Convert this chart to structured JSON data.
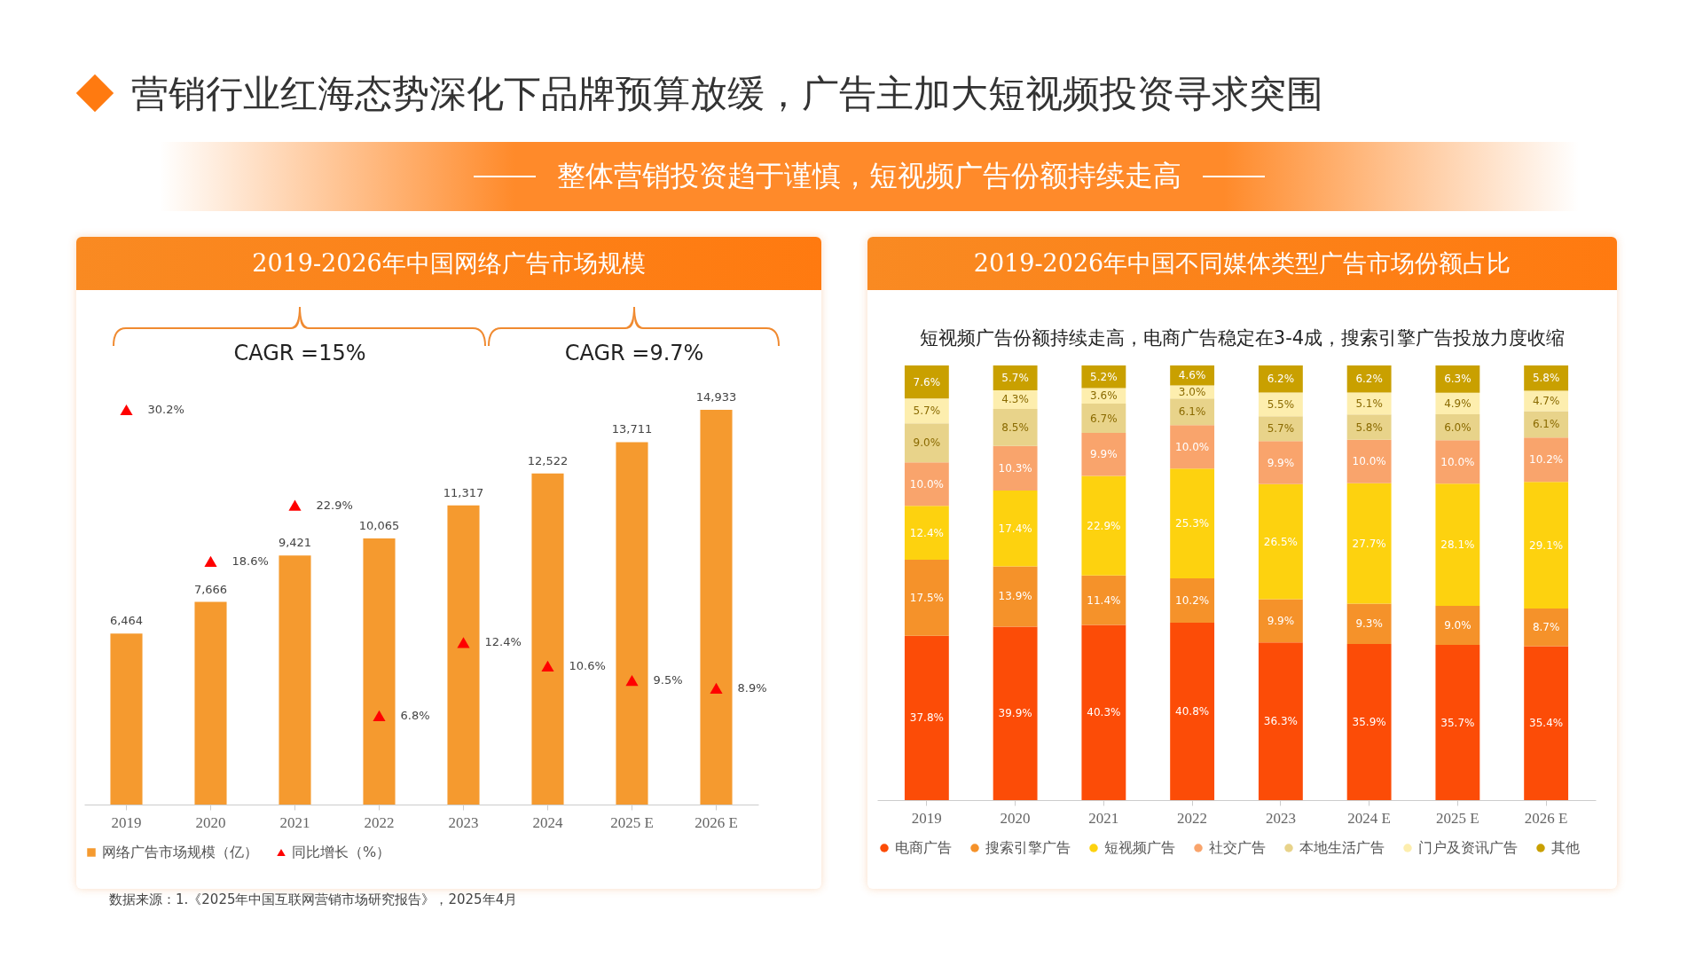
{
  "chart_data": [
    {
      "type": "bar",
      "title": "2019-2026年中国网络广告市场规模",
      "categories": [
        "2019",
        "2020",
        "2021",
        "2022",
        "2023",
        "2024",
        "2025 E",
        "2026 E"
      ],
      "series": [
        {
          "name": "网络广告市场规模（亿）",
          "color": "#f59a2f",
          "values": [
            6464,
            7666,
            9421,
            10065,
            11317,
            12522,
            13711,
            14933
          ],
          "value_labels": [
            "6,464",
            "7,666",
            "9,421",
            "10,065",
            "11,317",
            "12,522",
            "13,711",
            "14,933"
          ]
        },
        {
          "name": "同比增长（%）",
          "type": "scatter",
          "axis": "y2",
          "marker": "triangle",
          "color": "#ff0000",
          "values": [
            30.2,
            18.6,
            22.9,
            6.8,
            12.4,
            10.6,
            9.5,
            8.9
          ],
          "value_labels": [
            "30.2%",
            "18.6%",
            "22.9%",
            "6.8%",
            "12.4%",
            "10.6%",
            "9.5%",
            "8.9%"
          ]
        }
      ],
      "legend": "bottom",
      "annotations": [
        "营销行业红海态势深化下品牌预算放缓，广告主加大短视频投资寻求突围",
        "整体营销投资趋于谨慎，短视频广告份额持续走高",
        "CAGR =15%",
        "CAGR =9.7%",
        "数据来源：1.《2025年中国互联网营销市场研究报告》，2025年4月"
      ]
    },
    {
      "type": "bar",
      "stacked": true,
      "title": "2019-2026年中国不同媒体类型广告市场份额占比",
      "subtitle": "短视频广告份额持续走高，电商广告稳定在3-4成，搜索引擎广告投放力度收缩",
      "categories": [
        "2019",
        "2020",
        "2021",
        "2022",
        "2023",
        "2024 E",
        "2025 E",
        "2026 E"
      ],
      "series": [
        {
          "name": "电商广告",
          "color": "#fc4c07",
          "values": [
            37.8,
            39.9,
            40.3,
            40.8,
            36.3,
            35.9,
            35.7,
            35.4
          ],
          "value_labels": [
            "37.8%",
            "39.9%",
            "40.3%",
            "40.8%",
            "36.3%",
            "35.9%",
            "35.7%",
            "35.4%"
          ]
        },
        {
          "name": "搜索引擎广告",
          "color": "#f5922a",
          "values": [
            17.5,
            13.9,
            11.4,
            10.2,
            9.9,
            9.3,
            9.0,
            8.7
          ],
          "value_labels": [
            "17.5%",
            "13.9%",
            "11.4%",
            "10.2%",
            "9.9%",
            "9.3%",
            "9.0%",
            "8.7%"
          ]
        },
        {
          "name": "短视频广告",
          "color": "#fdd20f",
          "values": [
            12.4,
            17.4,
            22.9,
            25.3,
            26.5,
            27.7,
            28.1,
            29.1
          ],
          "value_labels": [
            "12.4%",
            "17.4%",
            "22.9%",
            "25.3%",
            "26.5%",
            "27.7%",
            "28.1%",
            "29.1%"
          ]
        },
        {
          "name": "社交广告",
          "color": "#f9a46c",
          "values": [
            10.0,
            10.3,
            9.9,
            10.0,
            9.9,
            10.0,
            10.0,
            10.2
          ],
          "value_labels": [
            "10.0%",
            "10.3%",
            "9.9%",
            "10.0%",
            "9.9%",
            "10.0%",
            "10.0%",
            "10.2%"
          ]
        },
        {
          "name": "本地生活广告",
          "color": "#e8d38a",
          "values": [
            9.0,
            8.5,
            6.7,
            6.1,
            5.7,
            5.8,
            6.0,
            6.1
          ],
          "value_labels": [
            "9.0%",
            "8.5%",
            "6.7%",
            "6.1%",
            "5.7%",
            "5.8%",
            "6.0%",
            "6.1%"
          ]
        },
        {
          "name": "门户及资讯广告",
          "color": "#fdeeae",
          "values": [
            5.7,
            4.3,
            3.6,
            3.0,
            5.5,
            5.1,
            4.9,
            4.7
          ],
          "value_labels": [
            "5.7%",
            "4.3%",
            "3.6%",
            "3.0%",
            "5.5%",
            "5.1%",
            "4.9%",
            "4.7%"
          ]
        },
        {
          "name": "其他",
          "color": "#c9a000",
          "values": [
            7.6,
            5.7,
            5.2,
            4.6,
            6.2,
            6.2,
            6.3,
            5.8
          ],
          "value_labels": [
            "7.6%",
            "5.7%",
            "5.2%",
            "4.6%",
            "6.2%",
            "6.2%",
            "6.3%",
            "5.8%"
          ]
        }
      ],
      "legend": "bottom"
    }
  ]
}
